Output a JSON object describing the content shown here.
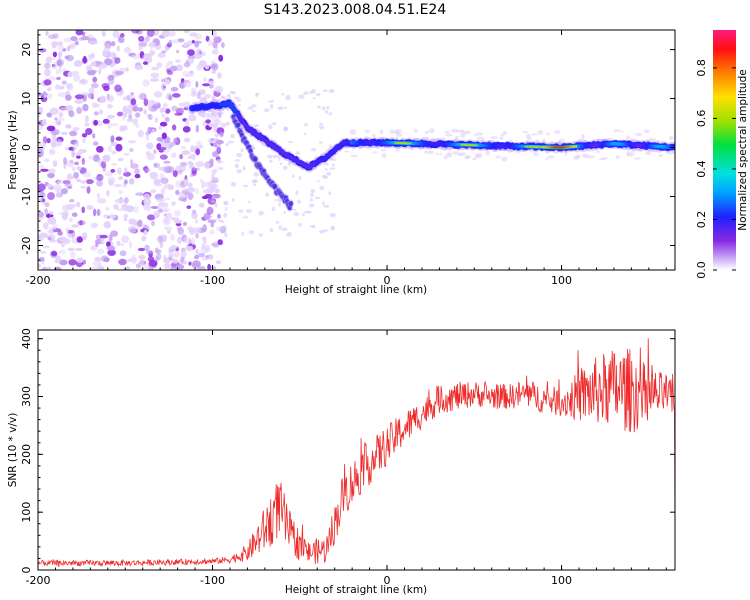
{
  "title": "S143.2023.008.04.51.E24",
  "colors": {
    "snr_line": "#ee2b2b",
    "frame": "#000000",
    "spectrogram_low": "#d8b8f8",
    "spectrogram_mid": "#8a2be2"
  },
  "chart_data": [
    {
      "id": "spectrogram",
      "type": "heatmap",
      "xlabel": "Height of straight line (km)",
      "ylabel": "Frequency (Hz)",
      "xlim": [
        -200,
        165
      ],
      "ylim": [
        -25,
        24
      ],
      "xticks": [
        -200,
        -100,
        0,
        100
      ],
      "yticks": [
        -20,
        -10,
        0,
        10,
        20
      ],
      "colorbar": {
        "label": "Normalized spectral amplitude",
        "range": [
          0.0,
          0.95
        ],
        "ticks": [
          "0.0",
          "0.2",
          "0.4",
          "0.6",
          "0.8"
        ],
        "tick_values": [
          0.0,
          0.2,
          0.4,
          0.6,
          0.8
        ],
        "colormap": "hsv-rainbow (white → purple → blue → cyan → green → yellow → red → magenta)"
      },
      "features": [
        {
          "name": "noise",
          "x_range": [
            -200,
            -100
          ],
          "y_range": [
            -25,
            24
          ],
          "amplitude": 0.08
        },
        {
          "name": "main-trace",
          "points": [
            [
              -112,
              8
            ],
            [
              -100,
              8.5
            ],
            [
              -90,
              9
            ],
            [
              -80,
              4
            ],
            [
              -60,
              -1
            ],
            [
              -45,
              -4
            ],
            [
              -35,
              -2
            ],
            [
              -25,
              1
            ],
            [
              0,
              1
            ],
            [
              50,
              0.5
            ],
            [
              100,
              0
            ],
            [
              130,
              0.8
            ],
            [
              165,
              0
            ]
          ]
        },
        {
          "name": "lower-branch",
          "points": [
            [
              -88,
              6
            ],
            [
              -75,
              -3
            ],
            [
              -65,
              -8
            ],
            [
              -55,
              -12
            ]
          ]
        }
      ]
    },
    {
      "id": "snr",
      "type": "line",
      "xlabel": "Height of straight line (km)",
      "ylabel": "SNR (10 * v/v)",
      "xlim": [
        -200,
        165
      ],
      "ylim": [
        0,
        415
      ],
      "xticks": [
        -200,
        -100,
        0,
        100
      ],
      "yticks": [
        0,
        100,
        200,
        300,
        400
      ],
      "series": [
        {
          "name": "SNR",
          "envelope_x": [
            -200,
            -150,
            -100,
            -90,
            -80,
            -70,
            -62,
            -55,
            -45,
            -35,
            -30,
            -25,
            -15,
            0,
            10,
            20,
            30,
            40,
            50,
            60,
            70,
            80,
            90,
            100,
            110,
            120,
            130,
            140,
            150,
            160,
            165
          ],
          "envelope_y": [
            12,
            12,
            15,
            18,
            30,
            70,
            110,
            60,
            30,
            35,
            80,
            130,
            170,
            215,
            245,
            270,
            295,
            300,
            305,
            300,
            300,
            305,
            295,
            290,
            300,
            310,
            315,
            310,
            300,
            305,
            290
          ],
          "noise_amplitude": [
            5,
            5,
            5,
            6,
            15,
            40,
            55,
            35,
            20,
            25,
            35,
            40,
            40,
            35,
            30,
            25,
            25,
            25,
            22,
            22,
            22,
            25,
            25,
            25,
            45,
            60,
            70,
            75,
            50,
            35,
            30
          ]
        }
      ]
    }
  ]
}
